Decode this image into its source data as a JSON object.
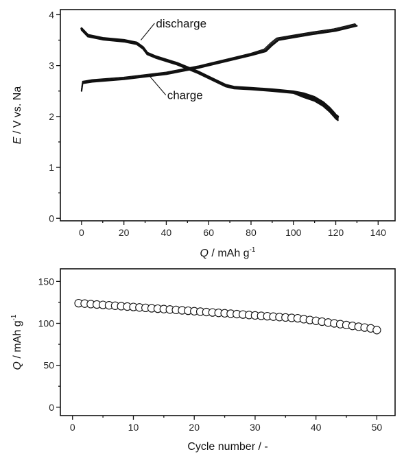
{
  "chart_data": [
    {
      "type": "line",
      "xlabel_italic": "Q",
      "xlabel_rest": " / mAh g",
      "xlabel_sup": "-1",
      "ylabel_italic": "E",
      "ylabel_rest": " / V vs. Na",
      "xlim": [
        -10,
        148
      ],
      "ylim": [
        -0.05,
        4.1
      ],
      "xticks": [
        0,
        20,
        40,
        60,
        80,
        100,
        120,
        140
      ],
      "yticks": [
        0,
        1,
        2,
        3,
        4
      ],
      "annotations": [
        {
          "text": "discharge",
          "series": "discharge",
          "point": [
            28,
            3.5
          ]
        },
        {
          "text": "charge",
          "series": "charge",
          "point": [
            32,
            2.8
          ]
        }
      ],
      "series": [
        {
          "role": "discharge",
          "x": [
            0,
            3,
            10,
            20,
            26,
            29,
            31,
            35,
            45,
            55,
            62,
            68,
            72,
            80,
            90,
            100,
            105,
            110,
            114,
            117,
            119,
            120,
            121
          ],
          "y": [
            3.73,
            3.6,
            3.54,
            3.5,
            3.45,
            3.36,
            3.25,
            3.18,
            3.05,
            2.88,
            2.74,
            2.62,
            2.58,
            2.56,
            2.53,
            2.49,
            2.45,
            2.38,
            2.28,
            2.17,
            2.08,
            2.03,
            2.0
          ]
        },
        {
          "role": "charge",
          "x": [
            0,
            0.5,
            5,
            20,
            40,
            55,
            60,
            70,
            80,
            87,
            90,
            93,
            100,
            110,
            120,
            126,
            130
          ],
          "y": [
            2.5,
            2.65,
            2.68,
            2.73,
            2.83,
            2.95,
            3.0,
            3.1,
            3.2,
            3.28,
            3.4,
            3.5,
            3.55,
            3.62,
            3.68,
            3.74,
            3.78
          ]
        }
      ]
    },
    {
      "type": "scatter",
      "xlabel": "Cycle number / -",
      "ylabel_italic": "Q",
      "ylabel_rest": " / mAh g",
      "ylabel_sup": "-1",
      "xlim": [
        -2,
        53
      ],
      "ylim": [
        -10,
        165
      ],
      "xticks": [
        0,
        10,
        20,
        30,
        40,
        50
      ],
      "yticks": [
        0,
        50,
        100,
        150
      ],
      "series": [
        {
          "x": [
            1,
            2,
            3,
            4,
            5,
            6,
            7,
            8,
            9,
            10,
            11,
            12,
            13,
            14,
            15,
            16,
            17,
            18,
            19,
            20,
            21,
            22,
            23,
            24,
            25,
            26,
            27,
            28,
            29,
            30,
            31,
            32,
            33,
            34,
            35,
            36,
            37,
            38,
            39,
            40,
            41,
            42,
            43,
            44,
            45,
            46,
            47,
            48,
            49,
            50
          ],
          "y": [
            124,
            123.5,
            123,
            122.5,
            122,
            121.5,
            121,
            120.5,
            120,
            119.5,
            119,
            118.5,
            118,
            117.5,
            117,
            116.5,
            116,
            115.5,
            115,
            114.5,
            114,
            113.5,
            113,
            112.5,
            112,
            111.5,
            111,
            110.5,
            110,
            109.5,
            109,
            108.5,
            108,
            107.5,
            107,
            106.5,
            106,
            105,
            104,
            103,
            102,
            101,
            100,
            99,
            98,
            97,
            96,
            95,
            94,
            92
          ]
        }
      ]
    }
  ]
}
